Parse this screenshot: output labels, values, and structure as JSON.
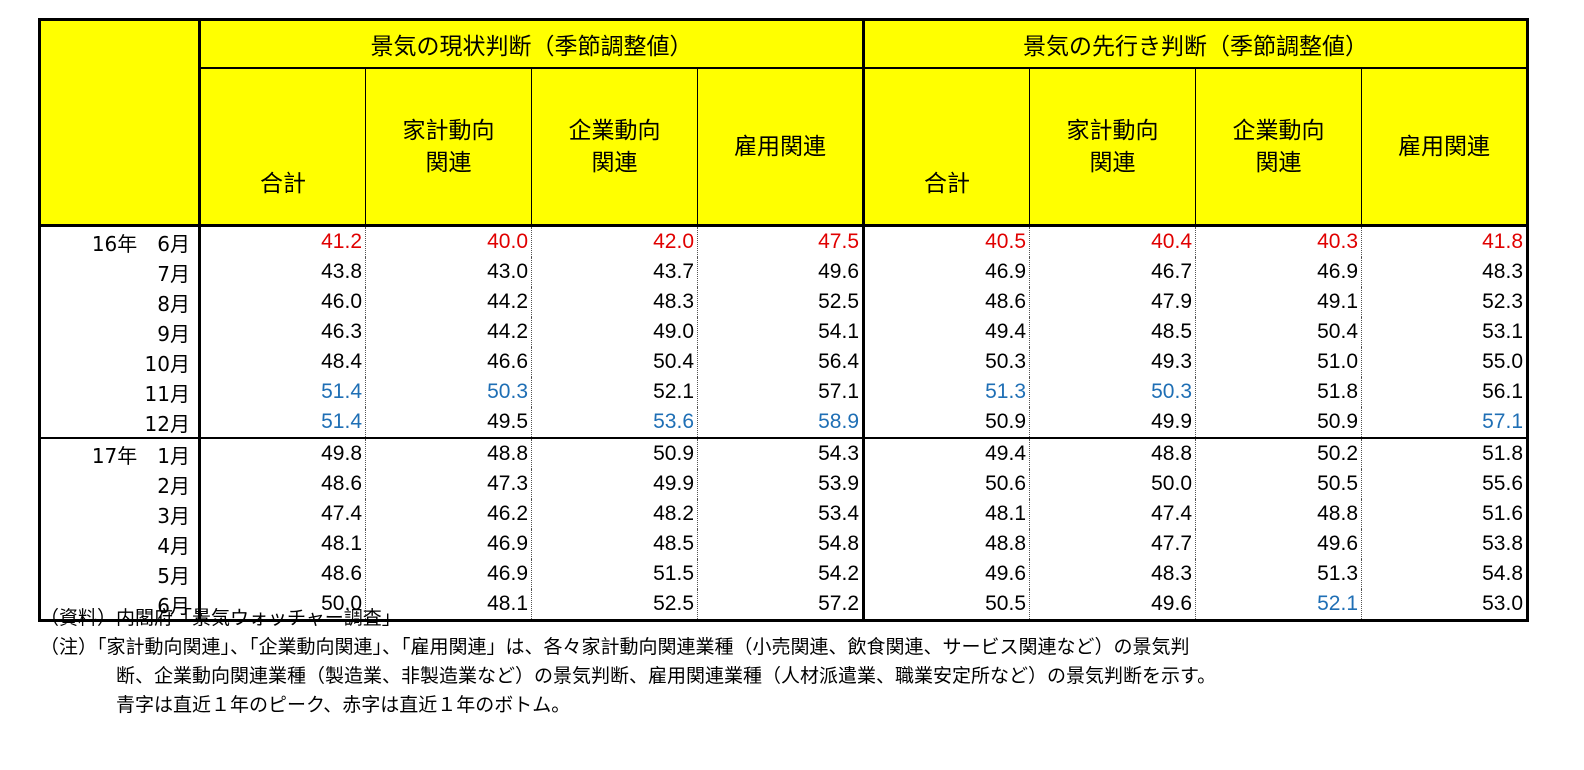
{
  "header": {
    "group_current": "景気の現状判断（季節調整値）",
    "group_outlook": "景気の先行き判断（季節調整値）",
    "sub": [
      "合計",
      "家計動向\n関連",
      "企業動向\n関連",
      "雇用関連"
    ]
  },
  "colors": {
    "header_bg": "#ffff00",
    "peak": "#1f6fb5",
    "bottom": "#e00000"
  },
  "rows": [
    {
      "label": "16年　6月",
      "values": [
        "41.2",
        "40.0",
        "42.0",
        "47.5",
        "40.5",
        "40.4",
        "40.3",
        "41.8"
      ],
      "marks": [
        "bottom",
        "bottom",
        "bottom",
        "bottom",
        "bottom",
        "bottom",
        "bottom",
        "bottom"
      ]
    },
    {
      "label": "7月",
      "values": [
        "43.8",
        "43.0",
        "43.7",
        "49.6",
        "46.9",
        "46.7",
        "46.9",
        "48.3"
      ],
      "marks": [
        "",
        "",
        "",
        "",
        "",
        "",
        "",
        ""
      ]
    },
    {
      "label": "8月",
      "values": [
        "46.0",
        "44.2",
        "48.3",
        "52.5",
        "48.6",
        "47.9",
        "49.1",
        "52.3"
      ],
      "marks": [
        "",
        "",
        "",
        "",
        "",
        "",
        "",
        ""
      ]
    },
    {
      "label": "9月",
      "values": [
        "46.3",
        "44.2",
        "49.0",
        "54.1",
        "49.4",
        "48.5",
        "50.4",
        "53.1"
      ],
      "marks": [
        "",
        "",
        "",
        "",
        "",
        "",
        "",
        ""
      ]
    },
    {
      "label": "10月",
      "values": [
        "48.4",
        "46.6",
        "50.4",
        "56.4",
        "50.3",
        "49.3",
        "51.0",
        "55.0"
      ],
      "marks": [
        "",
        "",
        "",
        "",
        "",
        "",
        "",
        ""
      ]
    },
    {
      "label": "11月",
      "values": [
        "51.4",
        "50.3",
        "52.1",
        "57.1",
        "51.3",
        "50.3",
        "51.8",
        "56.1"
      ],
      "marks": [
        "peak",
        "peak",
        "",
        "",
        "peak",
        "peak",
        "",
        ""
      ]
    },
    {
      "label": "12月",
      "values": [
        "51.4",
        "49.5",
        "53.6",
        "58.9",
        "50.9",
        "49.9",
        "50.9",
        "57.1"
      ],
      "marks": [
        "peak",
        "",
        "peak",
        "peak",
        "",
        "",
        "",
        "peak"
      ]
    },
    {
      "label": "17年　1月",
      "values": [
        "49.8",
        "48.8",
        "50.9",
        "54.3",
        "49.4",
        "48.8",
        "50.2",
        "51.8"
      ],
      "marks": [
        "",
        "",
        "",
        "",
        "",
        "",
        "",
        ""
      ]
    },
    {
      "label": "2月",
      "values": [
        "48.6",
        "47.3",
        "49.9",
        "53.9",
        "50.6",
        "50.0",
        "50.5",
        "55.6"
      ],
      "marks": [
        "",
        "",
        "",
        "",
        "",
        "",
        "",
        ""
      ]
    },
    {
      "label": "3月",
      "values": [
        "47.4",
        "46.2",
        "48.2",
        "53.4",
        "48.1",
        "47.4",
        "48.8",
        "51.6"
      ],
      "marks": [
        "",
        "",
        "",
        "",
        "",
        "",
        "",
        ""
      ]
    },
    {
      "label": "4月",
      "values": [
        "48.1",
        "46.9",
        "48.5",
        "54.8",
        "48.8",
        "47.7",
        "49.6",
        "53.8"
      ],
      "marks": [
        "",
        "",
        "",
        "",
        "",
        "",
        "",
        ""
      ]
    },
    {
      "label": "5月",
      "values": [
        "48.6",
        "46.9",
        "51.5",
        "54.2",
        "49.6",
        "48.3",
        "51.3",
        "54.8"
      ],
      "marks": [
        "",
        "",
        "",
        "",
        "",
        "",
        "",
        ""
      ]
    },
    {
      "label": "6月",
      "values": [
        "50.0",
        "48.1",
        "52.5",
        "57.2",
        "50.5",
        "49.6",
        "52.1",
        "53.0"
      ],
      "marks": [
        "",
        "",
        "",
        "",
        "",
        "",
        "peak",
        ""
      ]
    }
  ],
  "notes": {
    "source": "（資料）内閣府「景気ウォッチャー調査」",
    "note_line1": "（注）「家計動向関連」、「企業動向関連」、「雇用関連」は、各々家計動向関連業種（小売関連、飲食関連、サービス関連など）の景気判",
    "note_line2": "断、企業動向関連業種（製造業、非製造業など）の景気判断、雇用関連業種（人材派遣業、職業安定所など）の景気判断を示す。",
    "note_line3": "青字は直近１年のピーク、赤字は直近１年のボトム。"
  }
}
